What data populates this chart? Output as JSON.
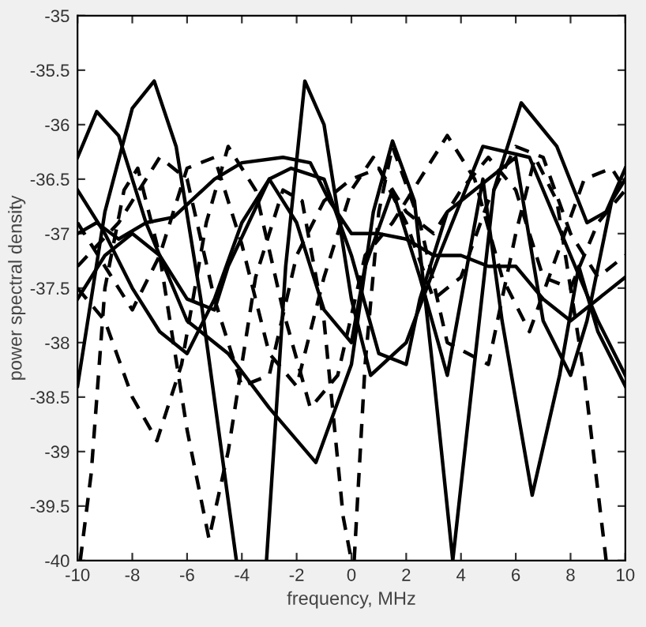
{
  "chart_data": {
    "type": "line",
    "xlabel": "frequency, MHz",
    "ylabel": "power spectral density",
    "xlim": [
      -10,
      10
    ],
    "ylim": [
      -40,
      -35
    ],
    "xticks": [
      -10,
      -8,
      -6,
      -4,
      -2,
      0,
      2,
      4,
      6,
      8,
      10
    ],
    "yticks": [
      -40,
      -39.5,
      -39,
      -38.5,
      -38,
      -37.5,
      -37,
      -36.5,
      -36,
      -35.5,
      -35
    ],
    "grid": false,
    "legend": false,
    "marker": "none",
    "series": [
      {
        "color": "#000000",
        "line_style": "solid",
        "x": [
          -10,
          -9,
          -8,
          -7.2,
          -6.4,
          -5.5,
          -4.2,
          -3.6,
          -3.1,
          -2.4,
          -1.7,
          -1,
          0,
          0.7,
          2,
          3.2,
          4.8,
          6.5,
          8,
          9,
          10
        ],
        "values": [
          -38.4,
          -36.8,
          -35.85,
          -35.6,
          -36.2,
          -37.6,
          -40,
          null,
          -40,
          -37.3,
          -35.6,
          -36.0,
          -37.6,
          -38.3,
          -38.0,
          -37.2,
          -36.2,
          -36.3,
          -37.2,
          -37.8,
          -38.3
        ]
      },
      {
        "color": "#000000",
        "line_style": "solid",
        "x": [
          -10,
          -9.3,
          -8.5,
          -7.5,
          -6,
          -4.5,
          -3,
          -1.3,
          0,
          0.8,
          1.5,
          2.3,
          3,
          3.7,
          4.4,
          5.2,
          6.2,
          7.5,
          8.6,
          9.3,
          10
        ],
        "values": [
          -36.3,
          -35.88,
          -36.1,
          -36.9,
          -37.8,
          -38.1,
          -38.6,
          -39.1,
          -38.2,
          -36.8,
          -36.15,
          -36.7,
          -38.3,
          -40,
          -38.4,
          -36.6,
          -35.8,
          -36.2,
          -36.9,
          -36.8,
          -36.4
        ]
      },
      {
        "color": "#000000",
        "line_style": "solid",
        "x": [
          -10,
          -9,
          -8,
          -7,
          -6,
          -5,
          -4,
          -3,
          -2,
          -1,
          0,
          0.5,
          1.5,
          2.5,
          3.5,
          4.8,
          5.5,
          6.6,
          7.6,
          8.3,
          9,
          10
        ],
        "values": [
          -36.6,
          -37,
          -37.5,
          -37.9,
          -38.1,
          -37.6,
          -36.9,
          -36.5,
          -36.9,
          -37.7,
          -38.0,
          -37.3,
          -36.6,
          -37.4,
          -38.3,
          -36.5,
          -37.8,
          -39.4,
          -38.3,
          -37.3,
          -37.9,
          -38.4
        ]
      },
      {
        "color": "#000000",
        "line_style": "solid",
        "x": [
          -10,
          -9.3,
          -8.5,
          -7.5,
          -6.5,
          -5,
          -4,
          -2.5,
          -1.5,
          -0.8,
          0,
          1,
          2,
          3,
          4,
          5,
          6,
          7,
          8,
          9,
          10
        ],
        "values": [
          -37.0,
          -36.9,
          -37.05,
          -36.9,
          -36.85,
          -36.5,
          -36.35,
          -36.3,
          -36.35,
          -36.7,
          -37.0,
          -37.0,
          -37.05,
          -37.2,
          -37.2,
          -37.3,
          -37.3,
          -37.6,
          -37.8,
          -37.6,
          -37.4
        ]
      },
      {
        "color": "#000000",
        "line_style": "solid",
        "x": [
          -10,
          -9,
          -8,
          -7,
          -6,
          -5,
          -4.5,
          -3,
          -2.2,
          -1,
          0,
          1,
          2,
          2.5,
          3.5,
          5,
          6,
          7,
          8,
          8.6,
          9.5,
          10
        ],
        "values": [
          -37.6,
          -37.2,
          -37.0,
          -37.2,
          -37.6,
          -37.7,
          -37.3,
          -36.5,
          -36.4,
          -36.5,
          -37.2,
          -38.1,
          -38.2,
          -37.6,
          -36.8,
          -36.5,
          -36.3,
          -37.8,
          -38.3,
          -37.8,
          -36.7,
          -36.5
        ]
      },
      {
        "color": "#000000",
        "line_style": "dashed",
        "x": [
          -9.9,
          -9.5,
          -9,
          -8.3,
          -7.8,
          -7,
          -6,
          -5.2,
          -4.5,
          -3.5,
          -2.5,
          -1.8,
          -1,
          -0.3,
          0,
          0.05,
          0.1,
          0.5,
          1,
          1.5,
          2.5,
          3.5,
          5,
          6,
          6.7,
          7.5,
          8.5,
          9.3
        ],
        "values": [
          -40,
          -39.2,
          -37.5,
          -36.6,
          -36.4,
          -37.2,
          -38.8,
          -39.8,
          -39.0,
          -37.4,
          -36.6,
          -36.7,
          -37.8,
          -39.6,
          -40,
          null,
          -40,
          -38.2,
          -36.8,
          -36.2,
          -36.9,
          -38.0,
          -38.2,
          -37.0,
          -36.3,
          -36.7,
          -38.3,
          -40
        ]
      },
      {
        "color": "#000000",
        "line_style": "dashed",
        "x": [
          -10,
          -9,
          -8,
          -7.1,
          -6.2,
          -5.3,
          -4.5,
          -3.5,
          -2.5,
          -1.5,
          -0.5,
          0.5,
          1.5,
          2.5,
          3.5,
          4.5,
          5.5,
          6.5,
          7.5,
          8.5,
          9.5,
          10
        ],
        "values": [
          -37.5,
          -37.8,
          -38.5,
          -38.9,
          -38.2,
          -36.9,
          -36.2,
          -36.6,
          -37.7,
          -38.6,
          -38.3,
          -37.2,
          -36.9,
          -36.5,
          -36.1,
          -36.5,
          -37.4,
          -37.9,
          -37.2,
          -36.5,
          -36.4,
          -36.6
        ]
      },
      {
        "color": "#000000",
        "line_style": "dashed",
        "x": [
          -10,
          -9,
          -8,
          -7,
          -6,
          -5,
          -4,
          -3,
          -2,
          -1,
          0,
          0.8,
          2,
          3,
          4,
          5,
          6,
          7,
          8,
          9,
          10
        ],
        "values": [
          -36.9,
          -37.3,
          -37.7,
          -37.2,
          -36.4,
          -36.3,
          -37.1,
          -38.1,
          -38.4,
          -37.4,
          -36.6,
          -36.3,
          -36.9,
          -37.6,
          -37.4,
          -36.7,
          -36.2,
          -36.3,
          -37.0,
          -37.4,
          -37.2
        ]
      },
      {
        "color": "#000000",
        "line_style": "dashed",
        "x": [
          -10,
          -8.5,
          -7,
          -6,
          -5,
          -4,
          -3,
          -2,
          -1,
          0,
          1,
          2,
          3,
          4,
          5,
          6,
          7,
          8,
          9,
          10
        ],
        "values": [
          -37.3,
          -36.9,
          -36.3,
          -36.5,
          -37.6,
          -38.4,
          -38.3,
          -37.2,
          -36.7,
          -36.5,
          -36.4,
          -36.8,
          -37.0,
          -36.6,
          -36.3,
          -36.6,
          -37.4,
          -37.5,
          -36.9,
          -36.6
        ]
      }
    ]
  }
}
